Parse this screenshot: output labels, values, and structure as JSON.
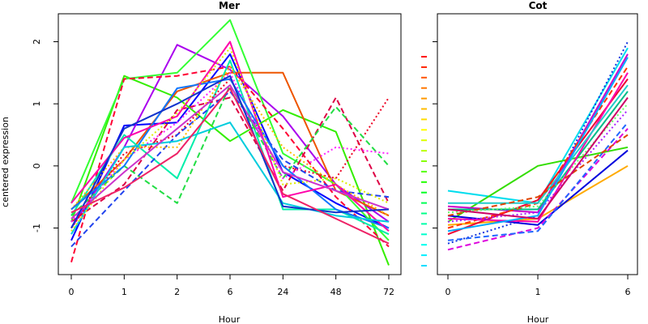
{
  "chart_data": [
    {
      "type": "line",
      "title": "Mer",
      "xlabel": "Hour",
      "ylabel": "centered expression",
      "categories": [
        "0",
        "1",
        "2",
        "6",
        "24",
        "48",
        "72"
      ],
      "yticks": [
        "-1",
        "0",
        "1",
        "2"
      ],
      "ylim": [
        -1.75,
        2.45
      ],
      "series": [
        {
          "values": [
            -1.2,
            0.65,
            0.7,
            1.8,
            -0.1,
            -0.6,
            -1.0
          ],
          "color": "#0000ff",
          "dash": "solid"
        },
        {
          "values": [
            -0.9,
            1.45,
            1.1,
            0.4,
            0.9,
            0.55,
            -1.6
          ],
          "color": "#33ee00",
          "dash": "solid"
        },
        {
          "values": [
            -1.0,
            0.3,
            1.95,
            1.55,
            0.8,
            -0.3,
            -0.9
          ],
          "color": "#aa00ee",
          "dash": "solid"
        },
        {
          "values": [
            -0.7,
            0.1,
            1.2,
            1.5,
            1.5,
            -0.4,
            -0.8
          ],
          "color": "#ee5500",
          "dash": "solid"
        },
        {
          "values": [
            -0.6,
            1.4,
            1.5,
            2.35,
            0.2,
            -0.3,
            -1.2
          ],
          "color": "#33ff33",
          "dash": "solid"
        },
        {
          "values": [
            -1.55,
            1.4,
            1.45,
            1.6,
            0.6,
            -0.5,
            -1.3
          ],
          "color": "#ff0033",
          "dash": "dashed"
        },
        {
          "values": [
            -0.8,
            0.5,
            -0.2,
            1.7,
            -0.7,
            -0.7,
            -1.1
          ],
          "color": "#00eeaa",
          "dash": "solid"
        },
        {
          "values": [
            -0.9,
            -0.3,
            0.9,
            1.1,
            -0.4,
            1.1,
            -0.6
          ],
          "color": "#dd0044",
          "dash": "dashed"
        },
        {
          "values": [
            -1.0,
            0.2,
            0.5,
            1.4,
            0.0,
            -0.2,
            1.1
          ],
          "color": "#ee0022",
          "dash": "dotted"
        },
        {
          "values": [
            -0.8,
            0.0,
            -0.6,
            1.3,
            -0.2,
            0.95,
            0.0
          ],
          "color": "#22dd44",
          "dash": "dashed"
        },
        {
          "values": [
            -1.3,
            -0.4,
            0.5,
            1.2,
            0.1,
            -0.4,
            -0.5
          ],
          "color": "#2244ee",
          "dash": "dashed"
        },
        {
          "values": [
            -0.9,
            0.1,
            0.7,
            1.5,
            -0.2,
            0.3,
            0.2
          ],
          "color": "#ff22ff",
          "dash": "dotted"
        },
        {
          "values": [
            -0.7,
            0.3,
            0.3,
            1.6,
            0.3,
            -0.3,
            -0.8
          ],
          "color": "#ffbb00",
          "dash": "dotted"
        },
        {
          "values": [
            -0.7,
            0.0,
            1.25,
            1.4,
            0.0,
            -0.7,
            -1.0
          ],
          "color": "#1177ff",
          "dash": "solid"
        },
        {
          "values": [
            -0.6,
            0.45,
            0.8,
            2.0,
            -0.5,
            -0.3,
            -1.05
          ],
          "color": "#ff00aa",
          "dash": "solid"
        },
        {
          "values": [
            -1.1,
            0.3,
            0.4,
            0.7,
            -0.6,
            -0.8,
            -0.9
          ],
          "color": "#00ccdd",
          "dash": "solid"
        },
        {
          "values": [
            -1.05,
            0.1,
            0.85,
            1.9,
            -0.3,
            -0.2,
            -0.6
          ],
          "color": "#ddee00",
          "dash": "dotted"
        },
        {
          "values": [
            -0.85,
            -0.1,
            0.6,
            1.3,
            -0.1,
            -0.4,
            -0.7
          ],
          "color": "#cc33cc",
          "dash": "solid"
        },
        {
          "values": [
            -1.0,
            0.6,
            1.0,
            1.45,
            -0.65,
            -0.75,
            -0.7
          ],
          "color": "#1133cc",
          "dash": "solid"
        },
        {
          "values": [
            -0.75,
            -0.35,
            0.2,
            1.25,
            -0.45,
            -0.85,
            -1.25
          ],
          "color": "#ee2266",
          "dash": "solid"
        }
      ]
    },
    {
      "type": "line",
      "title": "Cot",
      "xlabel": "Hour",
      "ylabel": "",
      "categories": [
        "0",
        "1",
        "6"
      ],
      "ylim": [
        -1.75,
        2.45
      ],
      "series": [
        {
          "values": [
            -0.4,
            -0.6,
            1.9
          ],
          "color": "#00ddee",
          "dash": "solid"
        },
        {
          "values": [
            -0.9,
            0.0,
            0.3
          ],
          "color": "#33dd00",
          "dash": "solid"
        },
        {
          "values": [
            -1.25,
            -0.8,
            2.0
          ],
          "color": "#1133dd",
          "dash": "dotted"
        },
        {
          "values": [
            -0.95,
            -0.85,
            0.0
          ],
          "color": "#ffaa00",
          "dash": "solid"
        },
        {
          "values": [
            -1.1,
            -0.55,
            1.4
          ],
          "color": "#ee0033",
          "dash": "solid"
        },
        {
          "values": [
            -0.65,
            -0.75,
            1.8
          ],
          "color": "#cc00cc",
          "dash": "solid"
        },
        {
          "values": [
            -0.8,
            -0.95,
            0.25
          ],
          "color": "#0000dd",
          "dash": "solid"
        },
        {
          "values": [
            -1.35,
            -1.0,
            0.6
          ],
          "color": "#dd00dd",
          "dash": "dashed"
        },
        {
          "values": [
            -0.7,
            -0.7,
            1.2
          ],
          "color": "#00bb88",
          "dash": "solid"
        },
        {
          "values": [
            -1.0,
            -0.6,
            1.6
          ],
          "color": "#ff3300",
          "dash": "dashed"
        },
        {
          "values": [
            -0.75,
            -0.65,
            1.0
          ],
          "color": "#66ff66",
          "dash": "dotted"
        },
        {
          "values": [
            -1.2,
            -1.05,
            0.7
          ],
          "color": "#2266ff",
          "dash": "dashed"
        },
        {
          "values": [
            -0.85,
            -0.9,
            1.5
          ],
          "color": "#ff00aa",
          "dash": "solid"
        },
        {
          "values": [
            -0.6,
            -0.6,
            1.3
          ],
          "color": "#22cccc",
          "dash": "solid"
        },
        {
          "values": [
            -0.9,
            -0.75,
            0.9
          ],
          "color": "#aa22ff",
          "dash": "dotted"
        },
        {
          "values": [
            -1.05,
            -0.8,
            1.75
          ],
          "color": "#00aaff",
          "dash": "solid"
        },
        {
          "values": [
            -0.8,
            -0.5,
            0.5
          ],
          "color": "#dd4400",
          "dash": "dashed"
        },
        {
          "values": [
            -0.7,
            -0.85,
            1.1
          ],
          "color": "#cc0066",
          "dash": "solid"
        }
      ],
      "legend_swatches": [
        "#ff0000",
        "#ff2200",
        "#ff5500",
        "#ff7700",
        "#ff9900",
        "#ffbb00",
        "#ffdd00",
        "#ffff00",
        "#ddff00",
        "#bbff00",
        "#88ff00",
        "#55ff00",
        "#22ff00",
        "#00ff22",
        "#00ff55",
        "#00ff88",
        "#00ffaa",
        "#00ffcc",
        "#00ffee",
        "#00eeff",
        "#00ddff"
      ]
    }
  ]
}
